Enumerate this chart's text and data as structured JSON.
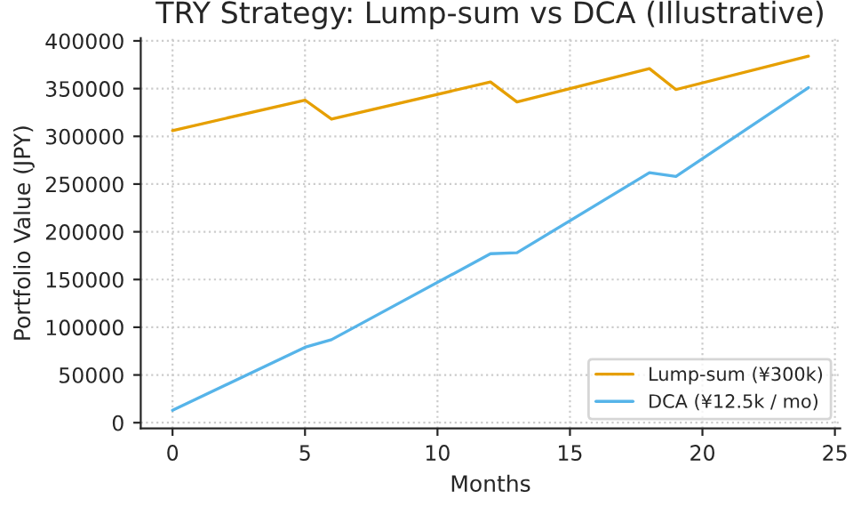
{
  "chart_data": {
    "type": "line",
    "title": "TRY Strategy: Lump-sum vs DCA (Illustrative)",
    "xlabel": "Months",
    "ylabel": "Portfolio Value (JPY)",
    "x": [
      0,
      5,
      6,
      12,
      13,
      18,
      19,
      24
    ],
    "series": [
      {
        "name": "Lump-sum (¥300k)",
        "color": "#e69f00",
        "values": [
          306000,
          338000,
          318000,
          357000,
          336000,
          371000,
          349000,
          384000
        ]
      },
      {
        "name": "DCA (¥12.5k / mo)",
        "color": "#56b4e9",
        "values": [
          13000,
          79000,
          87000,
          177000,
          178000,
          262000,
          258000,
          351000
        ]
      }
    ],
    "xlim": [
      -1.2,
      25.2
    ],
    "xticks": [
      0,
      5,
      10,
      15,
      20,
      25
    ],
    "ylim": [
      -6000,
      403000
    ],
    "yticks": [
      0,
      50000,
      100000,
      150000,
      200000,
      250000,
      300000,
      350000,
      400000
    ],
    "grid": true,
    "legend": "bottom right",
    "line_style": "solid",
    "marker": "none"
  }
}
